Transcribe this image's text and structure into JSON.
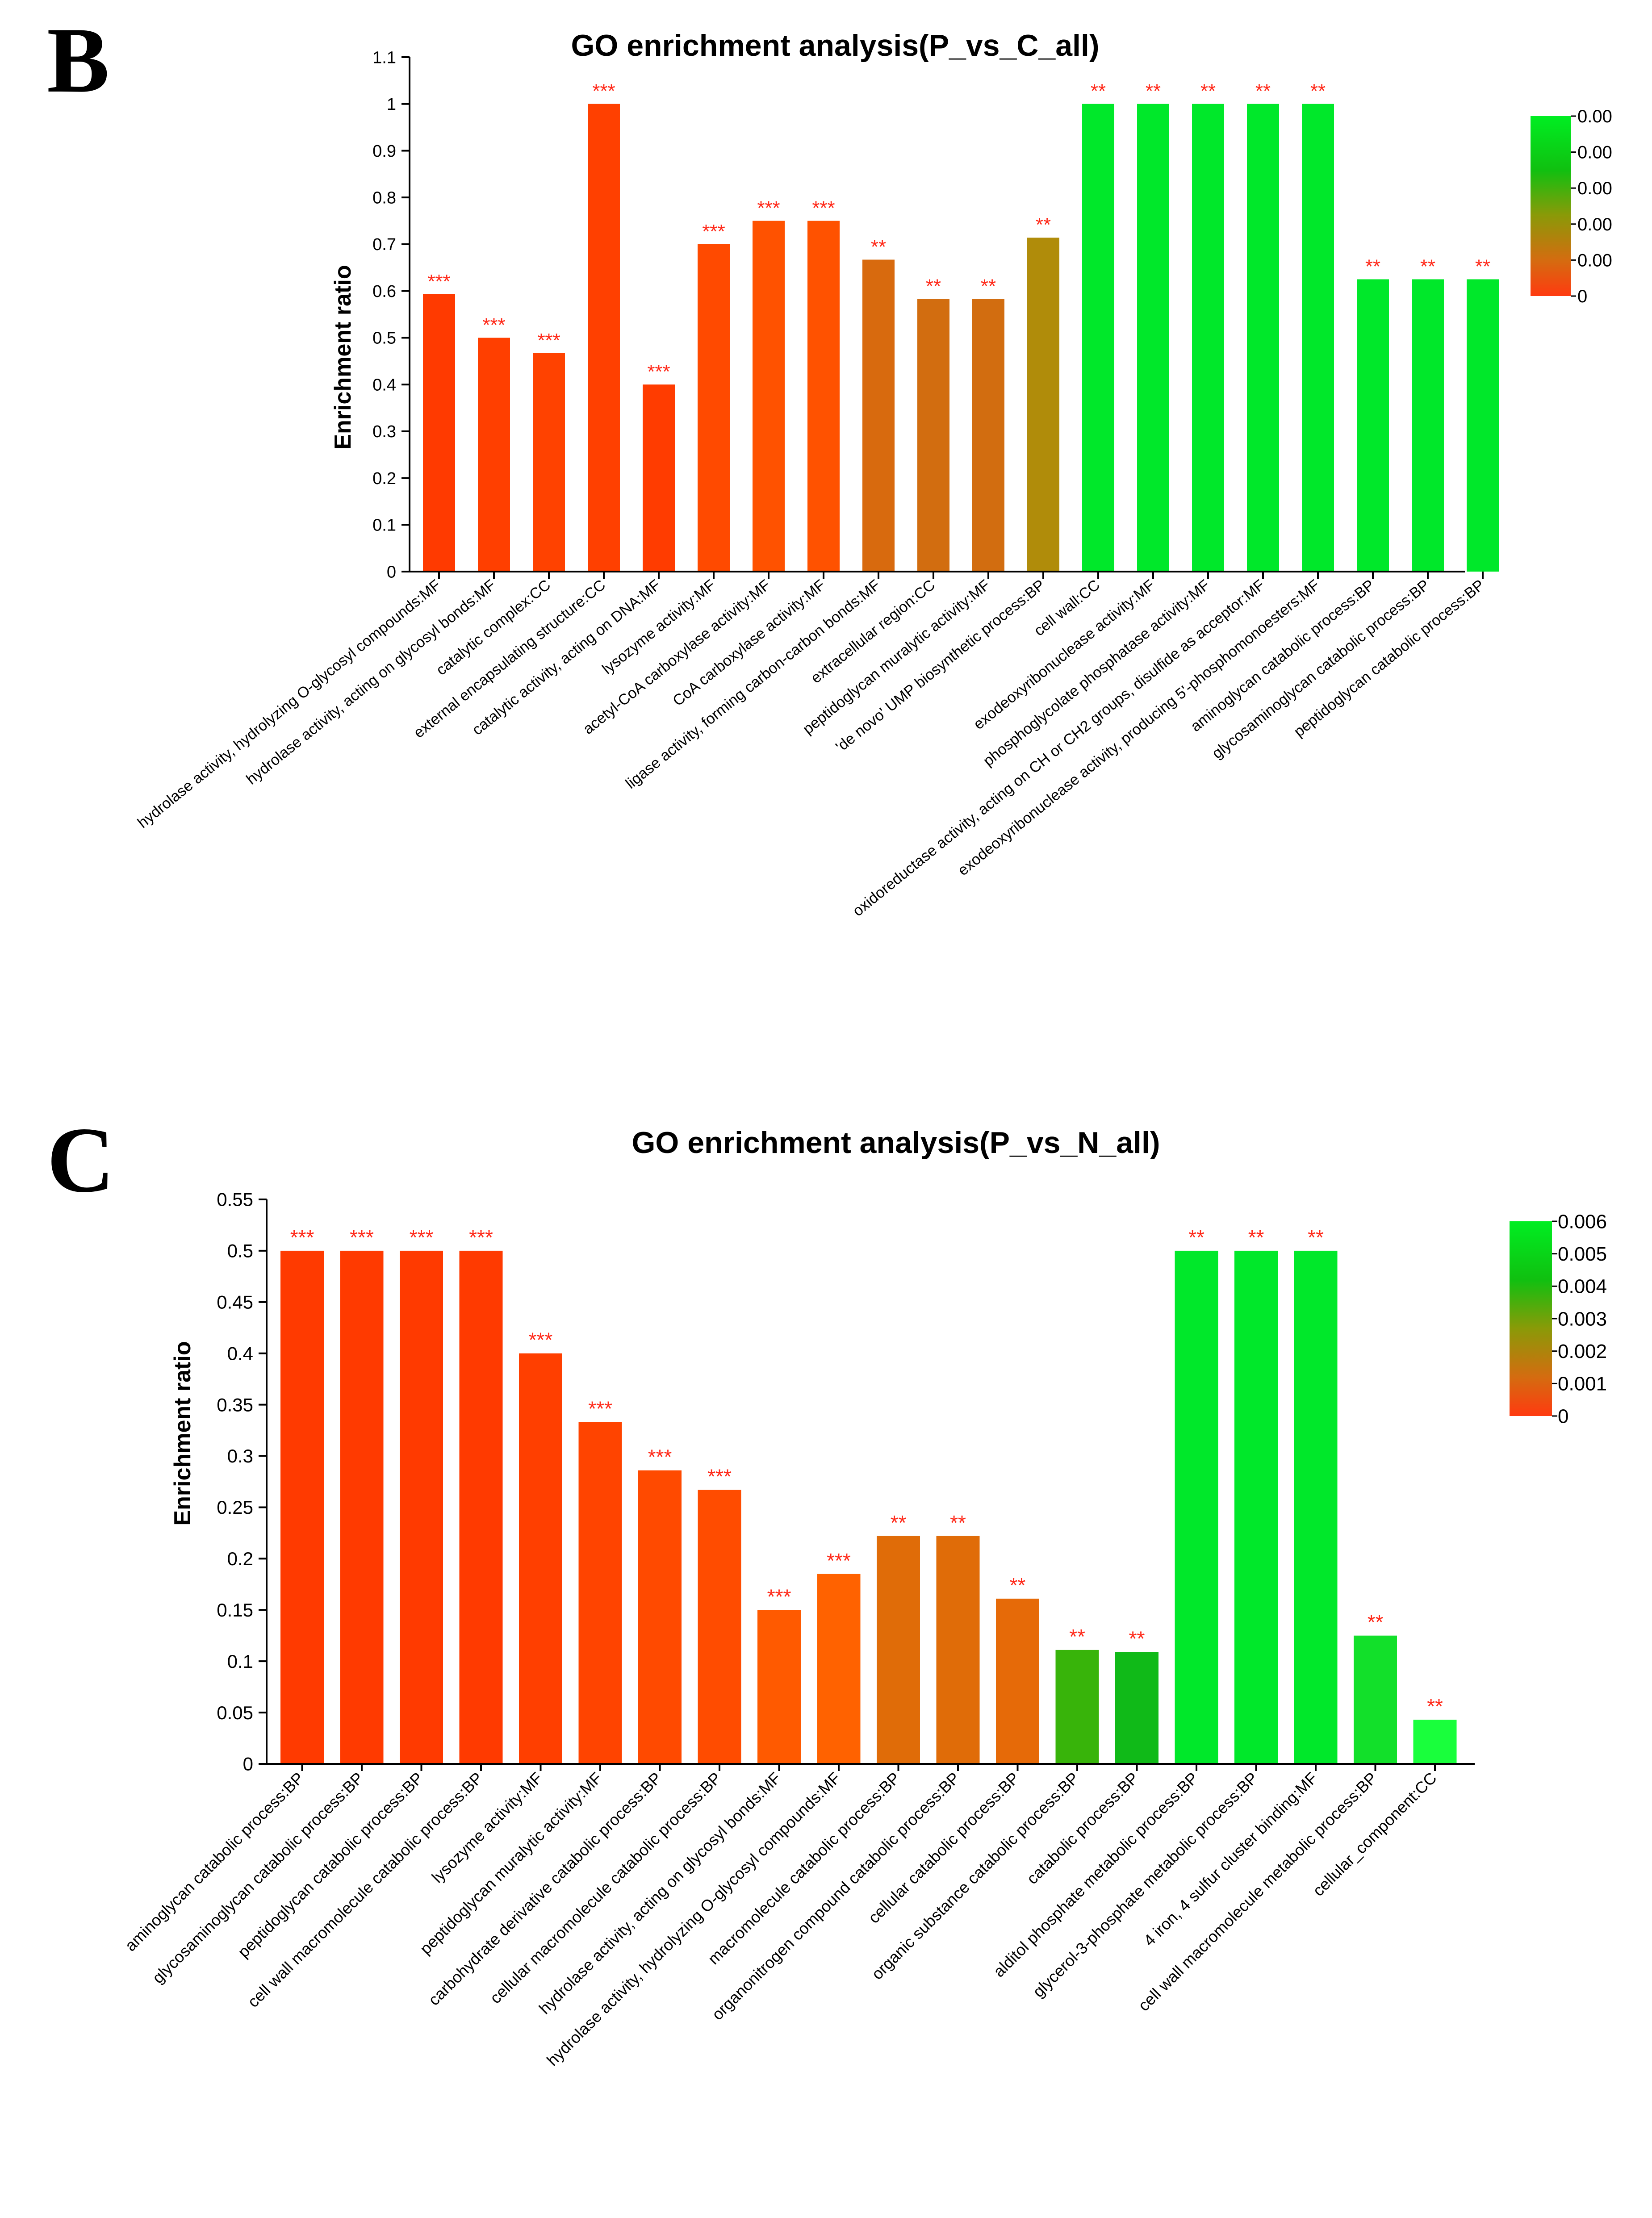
{
  "chart_data": [
    {
      "panel_label": "B",
      "type": "bar",
      "title": "GO enrichment analysis(P_vs_C_all)",
      "ylabel": "Enrichment ratio",
      "ylim": [
        0,
        1.1
      ],
      "yticks": [
        0,
        0.1,
        0.2,
        0.3,
        0.4,
        0.5,
        0.6,
        0.7,
        0.8,
        0.9,
        1,
        1.1
      ],
      "ytick_labels": [
        "0",
        "0.1",
        "0.2",
        "0.3",
        "0.4",
        "0.5",
        "0.6",
        "0.7",
        "0.8",
        "0.9",
        "1",
        "1.1"
      ],
      "categories": [
        "hydrolase activity, hydrolyzing O-glycosyl compounds:MF",
        "hydrolase activity, acting on glycosyl bonds:MF",
        "catalytic complex:CC",
        "external encapsulating structure:CC",
        "catalytic activity, acting on DNA:MF",
        "lysozyme activity:MF",
        "acetyl-CoA carboxylase activity:MF",
        "CoA carboxylase activity:MF",
        "ligase activity, forming carbon-carbon bonds:MF",
        "extracellular region:CC",
        "peptidoglycan muralytic activity:MF",
        "'de novo' UMP biosynthetic process:BP",
        "cell wall:CC",
        "exodeoxyribonuclease activity:MF",
        "phosphoglycolate phosphatase activity:MF",
        "oxidoreductase activity, acting on CH or CH2 groups, disulfide as acceptor:MF",
        "exodeoxyribonuclease activity, producing 5'-phosphomonoesters:MF",
        "aminoglycan catabolic process:BP",
        "glycosaminoglycan catabolic process:BP",
        "peptidoglycan catabolic process:BP"
      ],
      "values": [
        0.593,
        0.5,
        0.467,
        1.0,
        0.4,
        0.7,
        0.75,
        0.75,
        0.667,
        0.583,
        0.583,
        0.714,
        1.0,
        1.0,
        1.0,
        1.0,
        1.0,
        0.625,
        0.625,
        0.625
      ],
      "colors": [
        "#ff3a00",
        "#ff3f00",
        "#ff4200",
        "#ff4000",
        "#ff3c00",
        "#ff4a00",
        "#ff5200",
        "#ff5200",
        "#d86a0e",
        "#d26d10",
        "#d26d10",
        "#b08c0a",
        "#00e82a",
        "#00e82a",
        "#00e82a",
        "#00e82a",
        "#00e82a",
        "#00e82a",
        "#00e82a",
        "#00e82a"
      ],
      "significance": [
        "***",
        "***",
        "***",
        "***",
        "***",
        "***",
        "***",
        "***",
        "**",
        "**",
        "**",
        "**",
        "**",
        "**",
        "**",
        "**",
        "**",
        "**",
        "**",
        "**"
      ],
      "colorbar": {
        "labels": [
          "0.00",
          "0.00",
          "0.00",
          "0.00",
          "0.00",
          "0"
        ],
        "colors_top_to_bottom": [
          "#00ee22",
          "#10c010",
          "#8a9a08",
          "#d46c10",
          "#ff3a10"
        ]
      }
    },
    {
      "panel_label": "C",
      "type": "bar",
      "title": "GO enrichment analysis(P_vs_N_all)",
      "ylabel": "Enrichment ratio",
      "ylim": [
        0,
        0.55
      ],
      "yticks": [
        0,
        0.05,
        0.1,
        0.15,
        0.2,
        0.25,
        0.3,
        0.35,
        0.4,
        0.45,
        0.5,
        0.55
      ],
      "ytick_labels": [
        "0",
        "0.05",
        "0.1",
        "0.15",
        "0.2",
        "0.25",
        "0.3",
        "0.35",
        "0.4",
        "0.45",
        "0.5",
        "0.55"
      ],
      "categories": [
        "aminoglycan catabolic process:BP",
        "glycosaminoglycan catabolic process:BP",
        "peptidoglycan catabolic process:BP",
        "cell wall macromolecule catabolic process:BP",
        "lysozyme activity:MF",
        "peptidoglycan muralytic activity:MF",
        "carbohydrate derivative catabolic process:BP",
        "cellular macromolecule catabolic process:BP",
        "hydrolase activity, acting on glycosyl bonds:MF",
        "hydrolase activity, hydrolyzing O-glycosyl compounds:MF",
        "macromolecule catabolic process:BP",
        "organonitrogen compound catabolic process:BP",
        "cellular catabolic process:BP",
        "organic substance catabolic process:BP",
        "catabolic process:BP",
        "alditol phosphate metabolic process:BP",
        "glycerol-3-phosphate metabolic process:BP",
        "4 iron, 4 sulfur cluster binding:MF",
        "cell wall macromolecule metabolic process:BP",
        "cellular_component:CC"
      ],
      "values": [
        0.5,
        0.5,
        0.5,
        0.5,
        0.4,
        0.333,
        0.286,
        0.267,
        0.15,
        0.185,
        0.222,
        0.222,
        0.161,
        0.111,
        0.109,
        0.5,
        0.5,
        0.5,
        0.125,
        0.043
      ],
      "colors": [
        "#ff3a00",
        "#ff3a00",
        "#ff3a00",
        "#ff3a00",
        "#ff3f00",
        "#ff4400",
        "#ff4a00",
        "#ff4c00",
        "#ff5a00",
        "#ff6200",
        "#e06c08",
        "#e06c08",
        "#e66a08",
        "#38b40a",
        "#10ba18",
        "#00e82a",
        "#00e82a",
        "#00e82a",
        "#12e02a",
        "#19ff3c"
      ],
      "significance": [
        "***",
        "***",
        "***",
        "***",
        "***",
        "***",
        "***",
        "***",
        "***",
        "***",
        "**",
        "**",
        "**",
        "**",
        "**",
        "**",
        "**",
        "**",
        "**",
        "**"
      ],
      "colorbar": {
        "labels": [
          "0.006",
          "0.005",
          "0.004",
          "0.003",
          "0.002",
          "0.001",
          "0"
        ],
        "colors_top_to_bottom": [
          "#00ee22",
          "#10c010",
          "#8a9a08",
          "#d46c10",
          "#ff3a10"
        ]
      }
    }
  ]
}
